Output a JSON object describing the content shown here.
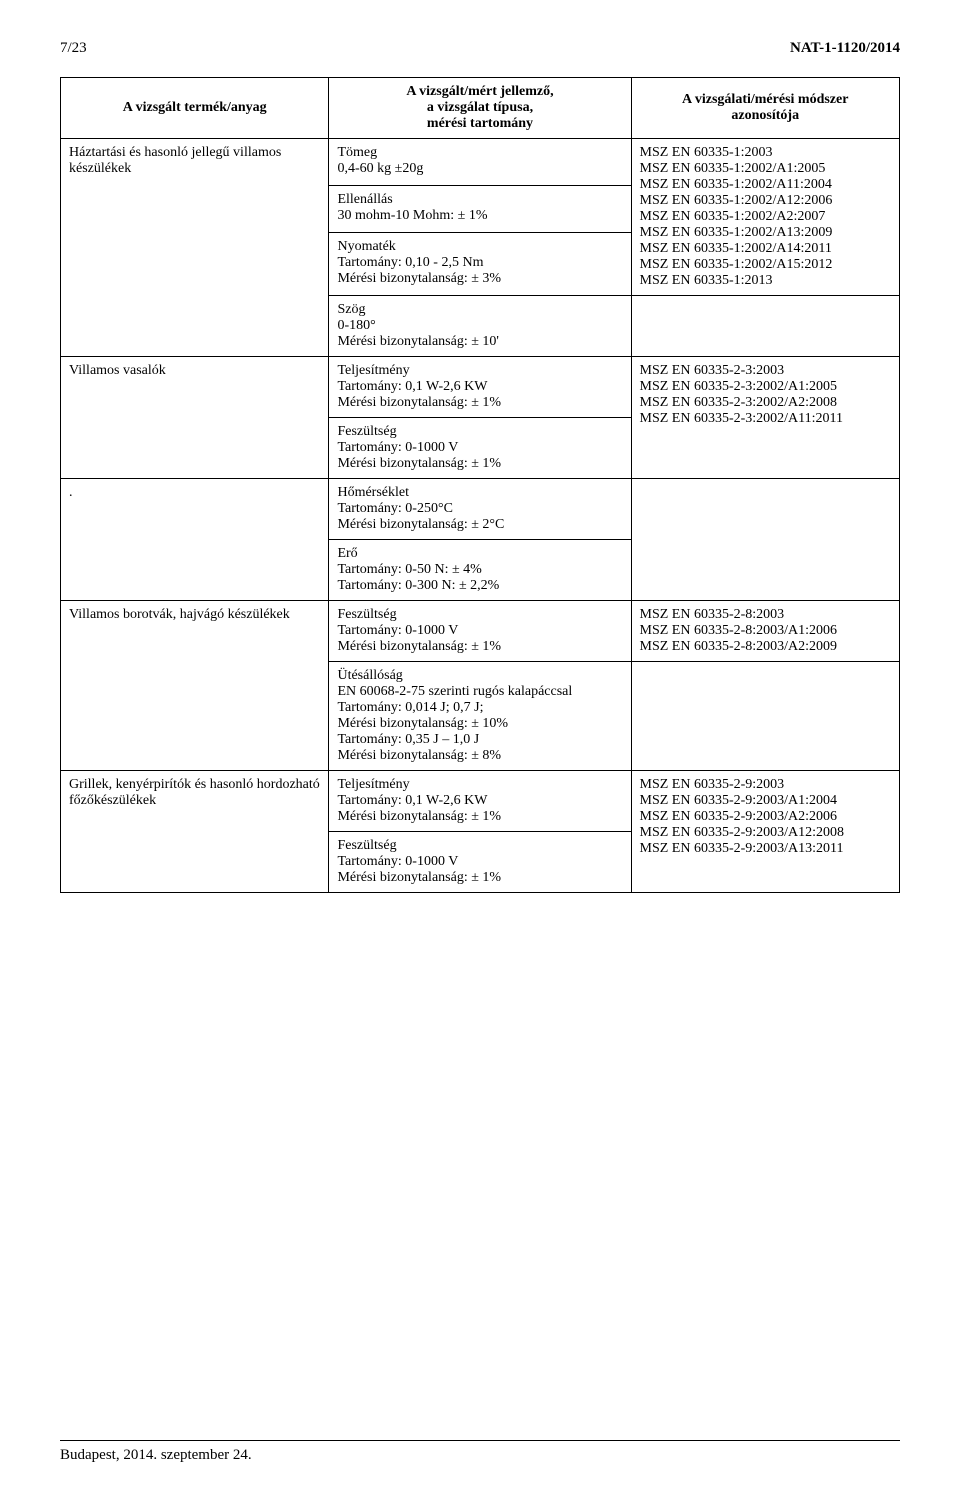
{
  "header": {
    "page_num": "7/23",
    "doc_id": "NAT-1-1120/2014"
  },
  "table": {
    "headers": {
      "col1": "A vizsgált termék/anyag",
      "col2_l1": "A vizsgált/mért jellemző,",
      "col2_l2": "a vizsgálat típusa,",
      "col2_l3": "mérési tartomány",
      "col3_l1": "A vizsgálati/mérési módszer",
      "col3_l2": "azonosítója"
    },
    "rows": [
      {
        "product": "Háztartási és hasonló jellegű villamos készülékek",
        "mid_cells": [
          "Tömeg\n0,4-60 kg   ±20g",
          "Ellenállás\n30 mohm-10 Mohm: ± 1%",
          "Nyomaték\nTartomány: 0,10 - 2,5 Nm\nMérési bizonytalanság: ± 3%",
          "Szög\n0-180°\nMérési bizonytalanság: ± 10'"
        ],
        "standards": "MSZ EN 60335-1:2003\nMSZ EN 60335-1:2002/A1:2005\nMSZ EN 60335-1:2002/A11:2004\nMSZ EN 60335-1:2002/A12:2006\nMSZ EN 60335-1:2002/A2:2007\nMSZ EN 60335-1:2002/A13:2009\nMSZ EN 60335-1:2002/A14:2011\nMSZ EN 60335-1:2002/A15:2012\nMSZ EN 60335-1:2013",
        "standards_rowspan": 3
      },
      {
        "product": " Villamos vasalók",
        "mid_cells": [
          "Teljesítmény\nTartomány: 0,1 W-2,6 KW\nMérési bizonytalanság: ± 1%",
          "Feszültség\nTartomány: 0-1000 V\nMérési bizonytalanság: ± 1%"
        ],
        "standards": "MSZ EN 60335-2-3:2003\nMSZ EN 60335-2-3:2002/A1:2005\nMSZ EN 60335-2-3:2002/A2:2008\nMSZ EN 60335-2-3:2002/A11:2011"
      },
      {
        "product": ".",
        "mid_cells": [
          "Hőmérséklet\nTartomány: 0-250°C\nMérési bizonytalanság: ± 2°C",
          "Erő\nTartomány: 0-50 N: ± 4%\nTartomány: 0-300 N: ± 2,2%"
        ],
        "standards": ""
      },
      {
        "product": "Villamos borotvák, hajvágó készülékek",
        "mid_cells": [
          "Feszültség\nTartomány: 0-1000 V\nMérési bizonytalanság: ± 1%",
          "Ütésállóság\nEN 60068-2-75 szerinti rugós kalapáccsal\nTartomány: 0,014 J; 0,7 J;\nMérési bizonytalanság: ± 10%\nTartomány: 0,35 J – 1,0 J\nMérési bizonytalanság: ± 8%"
        ],
        "standards": "MSZ EN 60335-2-8:2003\nMSZ EN 60335-2-8:2003/A1:2006\nMSZ EN 60335-2-8:2003/A2:2009",
        "standards_rowspan": 1
      },
      {
        "product": "Grillek, kenyérpirítók és hasonló hordozható főzőkészülékek",
        "mid_cells": [
          "Teljesítmény\nTartomány: 0,1 W-2,6 KW\nMérési bizonytalanság: ± 1%",
          "Feszültség\nTartomány: 0-1000 V\nMérési bizonytalanság: ± 1%"
        ],
        "standards": "MSZ EN 60335-2-9:2003\nMSZ EN 60335-2-9:2003/A1:2004\nMSZ EN 60335-2-9:2003/A2:2006\nMSZ EN 60335-2-9:2003/A12:2008\nMSZ EN 60335-2-9:2003/A13:2011"
      }
    ]
  },
  "footer": {
    "text": "Budapest, 2014. szeptember 24."
  },
  "watermark": "NAT"
}
